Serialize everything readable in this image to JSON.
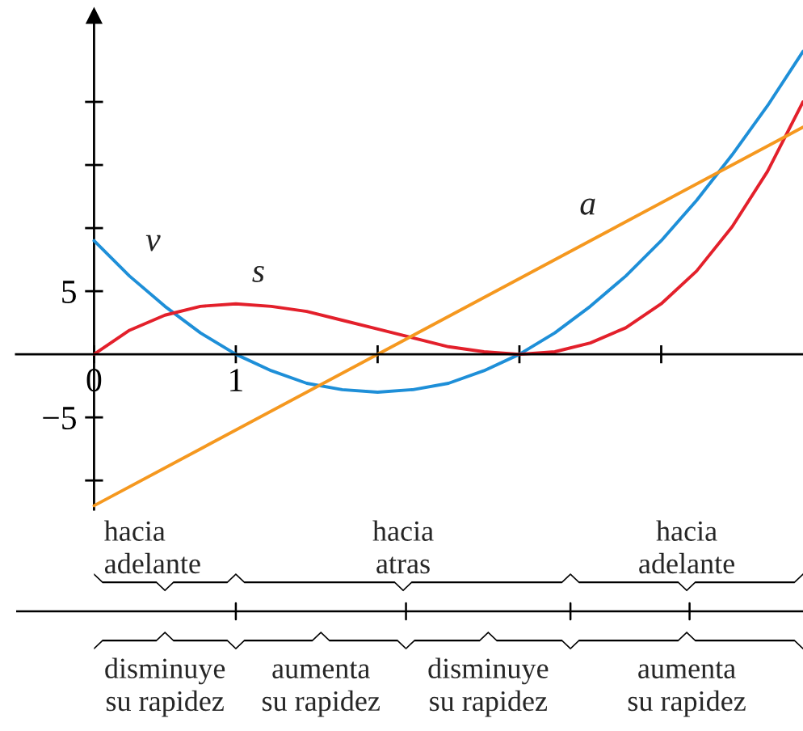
{
  "chart_data": {
    "type": "line",
    "x": [
      0,
      0.25,
      0.5,
      0.75,
      1,
      1.25,
      1.5,
      1.75,
      2,
      2.25,
      2.5,
      2.75,
      3,
      3.25,
      3.5,
      3.75,
      4,
      4.25,
      4.5,
      4.75,
      5
    ],
    "series": [
      {
        "name": "v",
        "color": "#1e8fd8",
        "values": [
          9,
          6.2,
          3.8,
          1.7,
          0,
          -1.3,
          -2.3,
          -2.8,
          -3,
          -2.8,
          -2.3,
          -1.3,
          0,
          1.7,
          3.8,
          6.2,
          9,
          12.2,
          15.8,
          19.7,
          24
        ]
      },
      {
        "name": "s",
        "color": "#e3202b",
        "values": [
          0,
          1.9,
          3.1,
          3.8,
          4,
          3.8,
          3.4,
          2.7,
          2,
          1.3,
          0.6,
          0.2,
          0,
          0.2,
          0.9,
          2.1,
          4,
          6.6,
          10.1,
          14.5,
          20
        ]
      },
      {
        "name": "a",
        "color": "#f5981f",
        "x": [
          0,
          5
        ],
        "values": [
          -12,
          18
        ]
      }
    ],
    "xlim": [
      -0.55,
      5
    ],
    "ylim": [
      -12.3,
      26.8
    ],
    "xticks": [
      {
        "value": 0,
        "label": "0"
      },
      {
        "value": 1,
        "label": "1"
      },
      {
        "value": 2,
        "label": null
      },
      {
        "value": 3,
        "label": null
      },
      {
        "value": 4,
        "label": null
      }
    ],
    "yticks": [
      {
        "value": -10,
        "label": null
      },
      {
        "value": -5,
        "label": "−5"
      },
      {
        "value": 5,
        "label": "5"
      },
      {
        "value": 10,
        "label": null
      },
      {
        "value": 15,
        "label": null
      },
      {
        "value": 20,
        "label": null
      }
    ],
    "grid": false,
    "legend": false,
    "annotations": [
      "hacia\nadelante",
      "hacia\natras",
      "hacia\nadelante",
      "disminuye\nsu rapidez",
      "aumenta\nsu rapidez",
      "disminuye\nsu rapidez",
      "aumenta\nsu rapidez"
    ]
  }
}
